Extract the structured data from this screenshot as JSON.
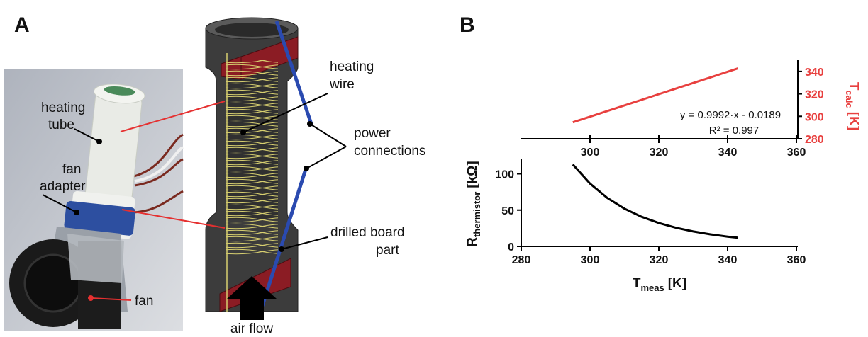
{
  "panels": {
    "a": "A",
    "b": "B"
  },
  "photo_labels": {
    "heating_tube": [
      "heating",
      "tube"
    ],
    "fan_adapter": [
      "fan",
      "adapter"
    ],
    "fan": "fan"
  },
  "diagram_labels": {
    "heating_wire": [
      "heating",
      "wire"
    ],
    "power_connections": [
      "power",
      "connections"
    ],
    "drilled_board_part": [
      "drilled board",
      "part"
    ],
    "air_flow": "air flow"
  },
  "chart_data": [
    {
      "type": "line",
      "x": [
        295,
        300,
        305,
        310,
        315,
        320,
        325,
        330,
        335,
        340,
        343
      ],
      "series": [
        {
          "color": "#e8403f",
          "axis": "y2",
          "values": [
            294.7,
            299.7,
            304.7,
            309.7,
            314.7,
            319.7,
            324.7,
            329.7,
            334.7,
            339.7,
            342.7
          ]
        }
      ],
      "annotations": [
        "y = 0.9992·x - 0.0189",
        "R² = 0.997"
      ],
      "xlim": [
        280,
        360
      ],
      "xticks": [
        300,
        320,
        340,
        360
      ],
      "y2lim": [
        280,
        350
      ],
      "y2ticks": [
        280,
        300,
        320,
        340
      ],
      "y2label": {
        "symbol": "T",
        "subscript": "calc",
        "unit": "[K]"
      }
    },
    {
      "type": "line",
      "x": [
        295,
        300,
        305,
        310,
        315,
        320,
        325,
        330,
        335,
        340,
        343
      ],
      "series": [
        {
          "color": "#000000",
          "values": [
            113,
            86.5,
            66.8,
            52.0,
            40.8,
            32.3,
            25.7,
            20.6,
            16.6,
            13.5,
            12
          ]
        }
      ],
      "xlim": [
        280,
        360
      ],
      "xticks": [
        280,
        300,
        320,
        340,
        360
      ],
      "ylim": [
        0,
        120
      ],
      "yticks": [
        0,
        50,
        100
      ],
      "xlabel": {
        "symbol": "T",
        "subscript": "meas",
        "unit": "[K]"
      },
      "ylabel": {
        "symbol": "R",
        "subscript": "thermistor",
        "unit": "[kΩ]"
      }
    }
  ]
}
